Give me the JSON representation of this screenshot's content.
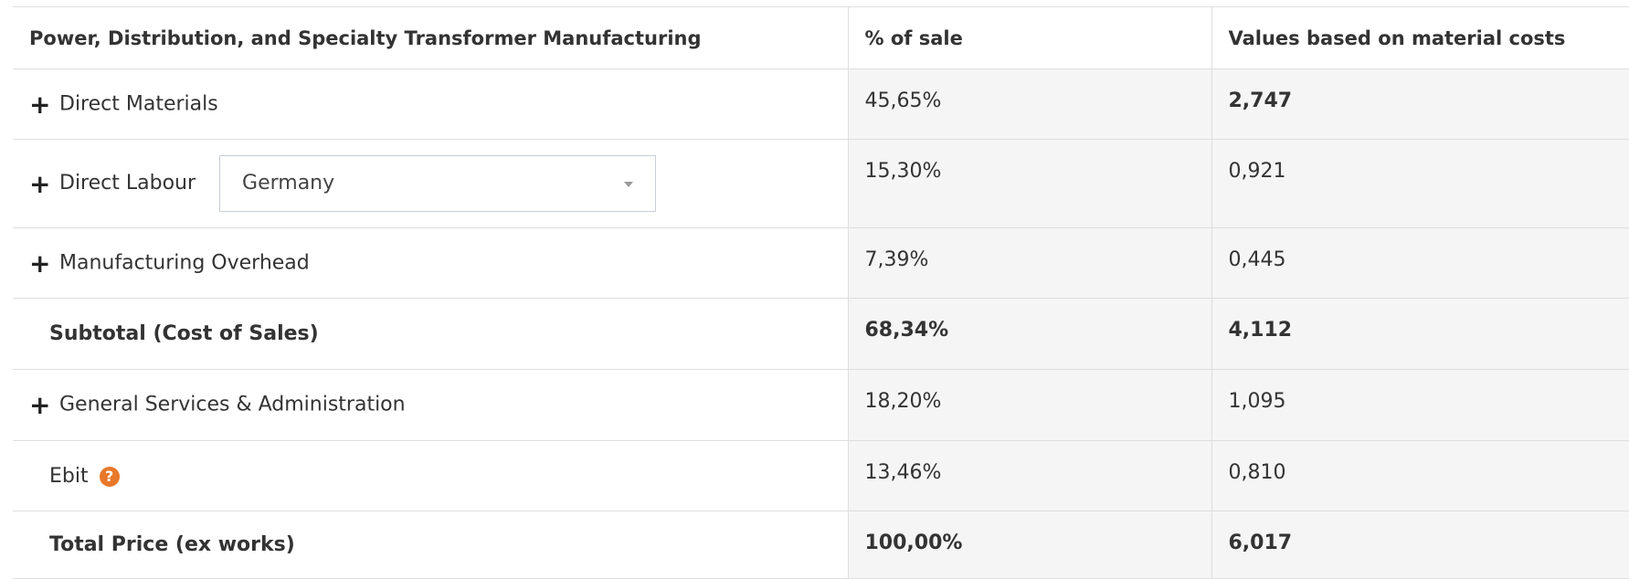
{
  "table": {
    "header": [
      "Power, Distribution, and Specialty Transformer Manufacturing",
      "% of sale",
      "Values based on material costs"
    ],
    "rows": [
      {
        "label": "Direct Materials",
        "percent": "45,65%",
        "value": "2,747"
      },
      {
        "label": "Direct Labour",
        "dropdown": "Germany",
        "percent": "15,30%",
        "value": "0,921"
      },
      {
        "label": "Manufacturing Overhead",
        "percent": "7,39%",
        "value": "0,445"
      },
      {
        "label": "Subtotal (Cost of Sales)",
        "percent": "68,34%",
        "value": "4,112"
      },
      {
        "label": "General Services & Administration",
        "percent": "18,20%",
        "value": "1,095"
      },
      {
        "label": "Ebit",
        "percent": "13,46%",
        "value": "0,810"
      },
      {
        "label": "Total Price (ex works)",
        "percent": "100,00%",
        "value": "6,017"
      }
    ]
  }
}
